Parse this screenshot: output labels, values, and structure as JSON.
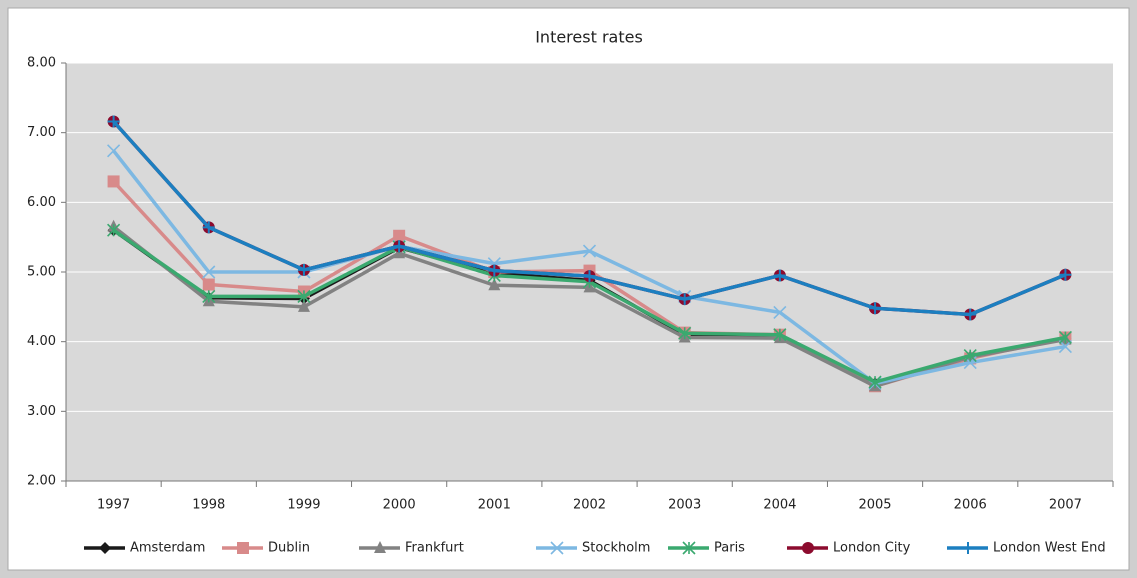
{
  "chart_data": {
    "type": "line",
    "title": "Interest rates",
    "categories": [
      "1997",
      "1998",
      "1999",
      "2000",
      "2001",
      "2002",
      "2003",
      "2004",
      "2005",
      "2006",
      "2007"
    ],
    "ylim": [
      2,
      8
    ],
    "yticks": [
      {
        "value": 2,
        "label": "2.00"
      },
      {
        "value": 3,
        "label": "3.00"
      },
      {
        "value": 4,
        "label": "4.00"
      },
      {
        "value": 5,
        "label": "5.00"
      },
      {
        "value": 6,
        "label": "6.00"
      },
      {
        "value": 7,
        "label": "7.00"
      },
      {
        "value": 8,
        "label": "8.00"
      }
    ],
    "grid": true,
    "legend": "bottom",
    "series": [
      {
        "name": "Amsterdam",
        "color": "#1a1a1a",
        "marker": "diamond",
        "values": [
          5.6,
          4.63,
          4.62,
          5.35,
          4.98,
          4.88,
          4.1,
          4.08,
          3.4,
          3.78,
          4.05
        ]
      },
      {
        "name": "Dublin",
        "color": "#d88a8a",
        "marker": "square",
        "values": [
          6.3,
          4.82,
          4.72,
          5.52,
          5.0,
          5.02,
          4.13,
          4.1,
          3.36,
          3.76,
          4.06
        ]
      },
      {
        "name": "Frankfurt",
        "color": "#828282",
        "marker": "triangle",
        "values": [
          5.65,
          4.58,
          4.5,
          5.27,
          4.81,
          4.78,
          4.06,
          4.05,
          3.36,
          3.78,
          4.03
        ]
      },
      {
        "name": "Stockholm",
        "color": "#7db8e2",
        "marker": "x",
        "values": [
          6.74,
          5.0,
          5.0,
          5.37,
          5.12,
          5.3,
          4.65,
          4.42,
          3.4,
          3.7,
          3.93
        ]
      },
      {
        "name": "Paris",
        "color": "#3aa96f",
        "marker": "star",
        "values": [
          5.6,
          4.65,
          4.65,
          5.36,
          4.95,
          4.86,
          4.12,
          4.1,
          3.42,
          3.8,
          4.06
        ]
      },
      {
        "name": "London City",
        "color": "#8c0b2e",
        "marker": "circle",
        "values": [
          7.16,
          5.64,
          5.03,
          5.37,
          5.02,
          4.94,
          4.61,
          4.95,
          4.48,
          4.39,
          4.96
        ]
      },
      {
        "name": "London West End",
        "color": "#1c7fc0",
        "marker": "plus",
        "values": [
          7.16,
          5.64,
          5.03,
          5.37,
          5.02,
          4.94,
          4.61,
          4.95,
          4.48,
          4.39,
          4.96
        ]
      }
    ]
  }
}
